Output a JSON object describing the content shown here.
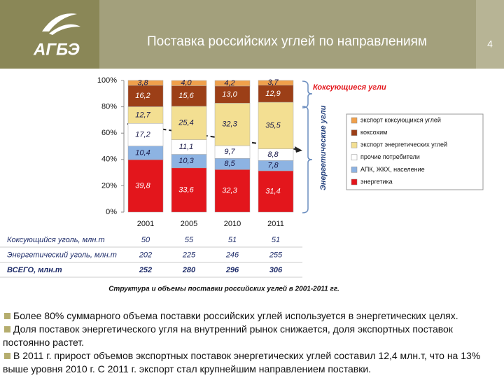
{
  "header": {
    "logo": "АГБЭ",
    "title": "Поставка российских углей по направлениям",
    "page_number": "4"
  },
  "chart_data": {
    "type": "stacked_bar",
    "categories": [
      "2001",
      "2005",
      "2010",
      "2011"
    ],
    "series": [
      {
        "name": "энергетика",
        "color": "#e3161c",
        "values": [
          39.8,
          33.6,
          32.3,
          31.4
        ],
        "value_labels": [
          "39,8",
          "33,6",
          "32,3",
          "31,4"
        ]
      },
      {
        "name": "АПК, ЖКХ, население",
        "color": "#8db3e2",
        "values": [
          10.4,
          10.3,
          8.5,
          7.8
        ],
        "value_labels": [
          "10,4",
          "10,3",
          "8,5",
          "7,8"
        ]
      },
      {
        "name": "прочие потребители",
        "color": "#ffffff",
        "values": [
          17.2,
          11.1,
          9.7,
          8.8
        ],
        "value_labels": [
          "17,2",
          "11,1",
          "9,7",
          "8,8"
        ]
      },
      {
        "name": "экспорт энергетических углей",
        "color": "#f3df92",
        "values": [
          12.7,
          25.4,
          32.3,
          35.5
        ],
        "value_labels": [
          "12,7",
          "25,4",
          "32,3",
          "35,5"
        ]
      },
      {
        "name": "коксохим",
        "color": "#9c3f17",
        "values": [
          16.2,
          15.6,
          13.0,
          12.9
        ],
        "value_labels": [
          "16,2",
          "15,6",
          "13,0",
          "12,9"
        ]
      },
      {
        "name": "экспорт коксующихся углей",
        "color": "#f0a04b",
        "values": [
          3.8,
          4.0,
          4.2,
          3.7
        ],
        "value_labels": [
          "3,8",
          "4,0",
          "4,2",
          "3,7"
        ]
      }
    ],
    "ylim": [
      0,
      100
    ],
    "yticks": [
      {
        "value": 0,
        "label": "0%"
      },
      {
        "value": 20,
        "label": "20%"
      },
      {
        "value": 40,
        "label": "40%"
      },
      {
        "value": 60,
        "label": "60%"
      },
      {
        "value": 80,
        "label": "80%"
      },
      {
        "value": 100,
        "label": "100%"
      }
    ],
    "annotations": [
      "Коксующиеся угли",
      "Энергетические угли"
    ]
  },
  "table": {
    "rows": [
      [
        "Коксующийся уголь, млн.т",
        50,
        55,
        51,
        51
      ],
      [
        "Энергетический уголь, млн.т",
        202,
        225,
        246,
        255
      ],
      [
        "ВСЕГО, млн.т",
        252,
        280,
        296,
        306
      ]
    ]
  },
  "caption": "Структура и объемы поставки российских углей в 2001-2011 гг.",
  "bullets": [
    "Более 80% суммарного объема поставки российских углей используется в энергетических целях.",
    "Доля поставок энергетического угля на внутренний рынок снижается, доля экспортных поставок постоянно растет.",
    "В 2011 г. прирост объемов экспортных поставок энергетических углей составил 12,4 млн.т, что на 13% выше уровня 2010 г. С 2011 г. экспорт стал крупнейшим направлением поставки."
  ]
}
